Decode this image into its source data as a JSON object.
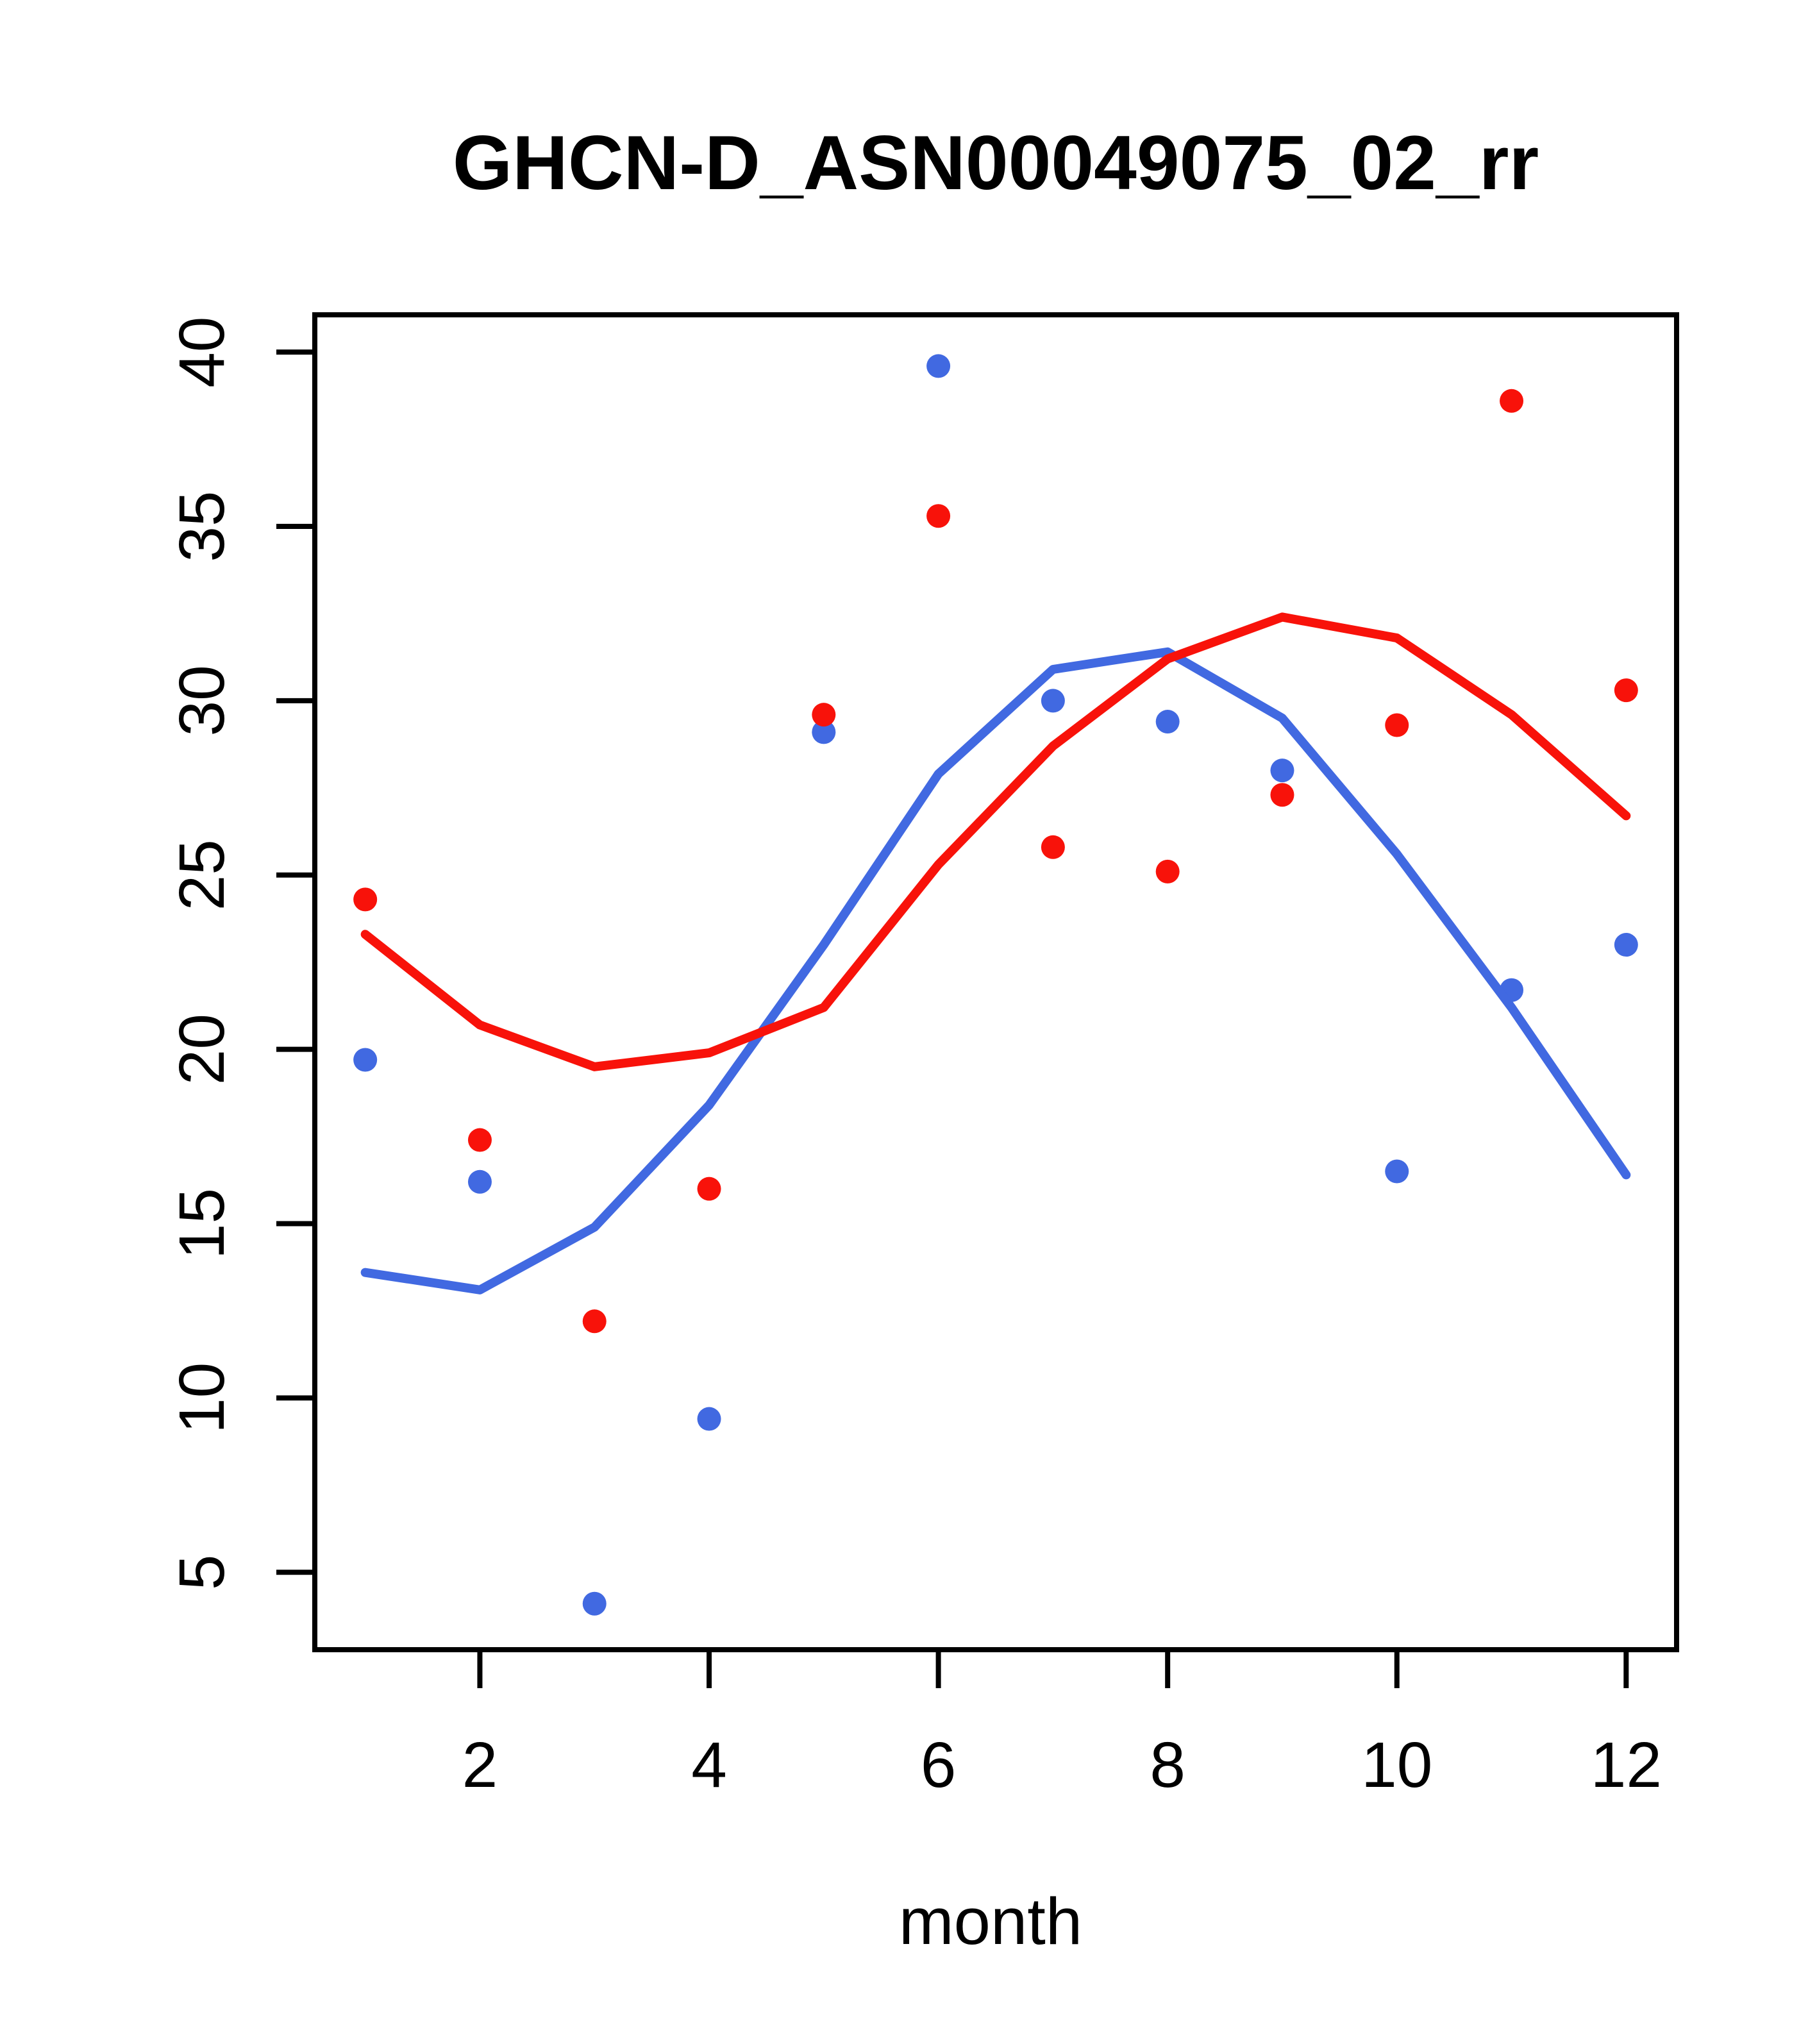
{
  "title": "GHCN-D_ASN00049075_02_rr",
  "xlabel": "month",
  "colors": {
    "red": "#F8120A",
    "blue": "#4169E1",
    "axis": "#000000",
    "background": "#FFFFFF"
  },
  "chart_data": {
    "type": "scatter",
    "title": "GHCN-D_ASN00049075_02_rr",
    "xlabel": "month",
    "ylabel": "",
    "x": [
      1,
      2,
      3,
      4,
      5,
      6,
      7,
      8,
      9,
      10,
      11,
      12
    ],
    "xticks": [
      2,
      4,
      6,
      8,
      10,
      12
    ],
    "yticks": [
      5,
      10,
      15,
      20,
      25,
      30,
      35,
      40
    ],
    "xlim": [
      0.56,
      12.44
    ],
    "ylim": [
      2.78,
      41.07
    ],
    "grid": false,
    "legend": "none",
    "series": [
      {
        "name": "blue-points",
        "type": "scatter",
        "color": "#4169E1",
        "values": [
          19.7,
          16.2,
          4.1,
          9.4,
          29.1,
          39.6,
          30.0,
          29.4,
          28.0,
          16.5,
          21.7,
          23.0
        ]
      },
      {
        "name": "red-points",
        "type": "scatter",
        "color": "#F8120A",
        "values": [
          24.3,
          17.4,
          12.2,
          16.0,
          29.6,
          35.3,
          25.8,
          25.1,
          27.3,
          29.3,
          38.6,
          30.3
        ]
      },
      {
        "name": "blue-smooth-line",
        "type": "line",
        "color": "#4169E1",
        "values": [
          13.6,
          13.1,
          14.9,
          18.4,
          23.0,
          27.9,
          30.9,
          31.4,
          29.5,
          25.6,
          21.2,
          16.4
        ]
      },
      {
        "name": "red-smooth-line",
        "type": "line",
        "color": "#F8120A",
        "values": [
          23.3,
          20.7,
          19.5,
          19.9,
          21.2,
          25.3,
          28.7,
          31.2,
          32.4,
          31.8,
          29.6,
          26.7
        ]
      }
    ]
  }
}
